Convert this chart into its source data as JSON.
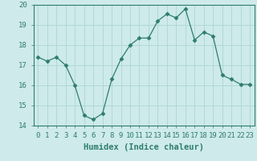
{
  "x": [
    0,
    1,
    2,
    3,
    4,
    5,
    6,
    7,
    8,
    9,
    10,
    11,
    12,
    13,
    14,
    15,
    16,
    17,
    18,
    19,
    20,
    21,
    22,
    23
  ],
  "y": [
    17.4,
    17.2,
    17.4,
    17.0,
    16.0,
    14.5,
    14.3,
    14.6,
    16.3,
    17.3,
    18.0,
    18.35,
    18.35,
    19.2,
    19.55,
    19.35,
    19.8,
    18.25,
    18.65,
    18.45,
    16.5,
    16.3,
    16.05,
    16.05
  ],
  "line_color": "#2e7d6e",
  "marker": "D",
  "marker_size": 2.5,
  "bg_color": "#ceeaea",
  "grid_color": "#b0d8d8",
  "xlabel": "Humidex (Indice chaleur)",
  "xlim": [
    -0.5,
    23.5
  ],
  "ylim": [
    14,
    20
  ],
  "yticks": [
    14,
    15,
    16,
    17,
    18,
    19,
    20
  ],
  "xticks": [
    0,
    1,
    2,
    3,
    4,
    5,
    6,
    7,
    8,
    9,
    10,
    11,
    12,
    13,
    14,
    15,
    16,
    17,
    18,
    19,
    20,
    21,
    22,
    23
  ],
  "xlabel_fontsize": 7.5,
  "tick_fontsize": 6.5
}
